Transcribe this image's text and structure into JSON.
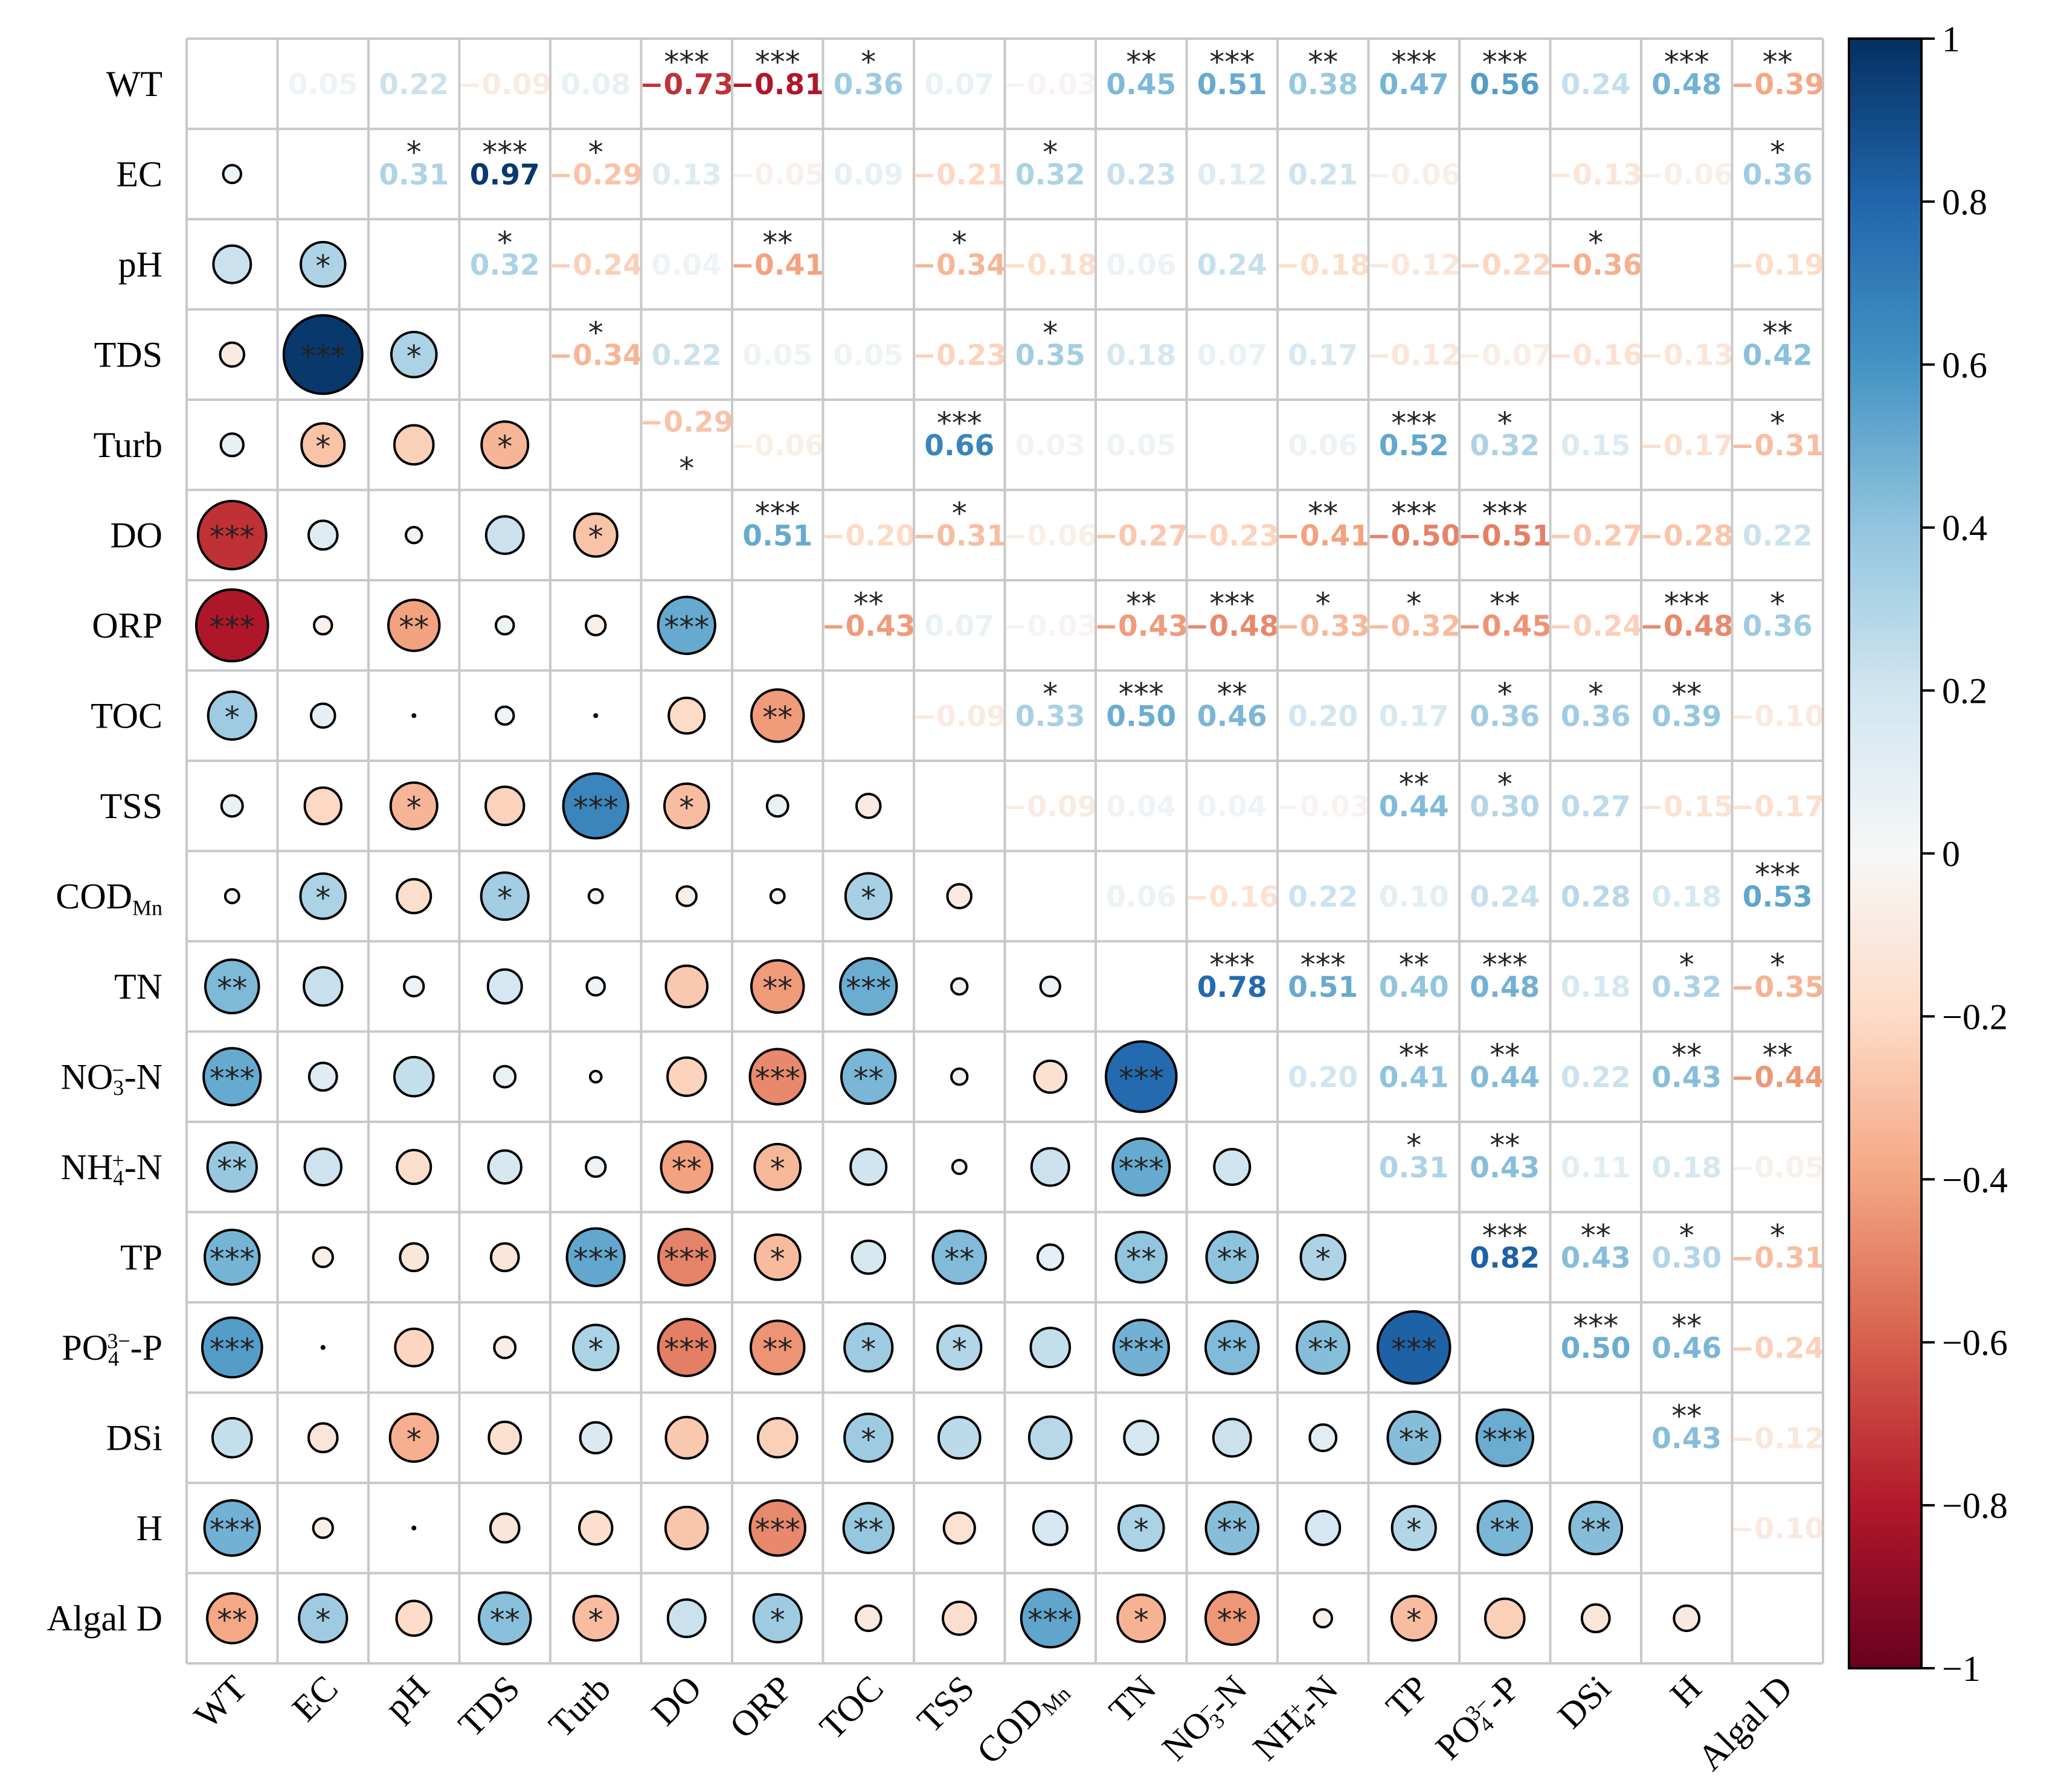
{
  "chart_data": {
    "type": "heatmap",
    "style": "correlation matrix: circles in lower triangle, numbers in upper triangle",
    "variables": [
      {
        "id": "WT",
        "main": "WT",
        "sub": "",
        "sup": "",
        "suffix": ""
      },
      {
        "id": "EC",
        "main": "EC",
        "sub": "",
        "sup": "",
        "suffix": ""
      },
      {
        "id": "pH",
        "main": "pH",
        "sub": "",
        "sup": "",
        "suffix": ""
      },
      {
        "id": "TDS",
        "main": "TDS",
        "sub": "",
        "sup": "",
        "suffix": ""
      },
      {
        "id": "Turb",
        "main": "Turb",
        "sub": "",
        "sup": "",
        "suffix": ""
      },
      {
        "id": "DO",
        "main": "DO",
        "sub": "",
        "sup": "",
        "suffix": ""
      },
      {
        "id": "ORP",
        "main": "ORP",
        "sub": "",
        "sup": "",
        "suffix": ""
      },
      {
        "id": "TOC",
        "main": "TOC",
        "sub": "",
        "sup": "",
        "suffix": ""
      },
      {
        "id": "TSS",
        "main": "TSS",
        "sub": "",
        "sup": "",
        "suffix": ""
      },
      {
        "id": "CODMn",
        "main": "COD",
        "sub": "Mn",
        "sup": "",
        "suffix": ""
      },
      {
        "id": "TN",
        "main": "TN",
        "sub": "",
        "sup": "",
        "suffix": ""
      },
      {
        "id": "NO3-N",
        "main": "NO",
        "sub": "3",
        "sup": "−",
        "suffix": "-N"
      },
      {
        "id": "NH4+-N",
        "main": "NH",
        "sub": "4",
        "sup": "+",
        "suffix": "-N"
      },
      {
        "id": "TP",
        "main": "TP",
        "sub": "",
        "sup": "",
        "suffix": ""
      },
      {
        "id": "PO43--P",
        "main": "PO",
        "sub": "4",
        "sup": "3−",
        "suffix": "-P"
      },
      {
        "id": "DSi",
        "main": "DSi",
        "sub": "",
        "sup": "",
        "suffix": ""
      },
      {
        "id": "H",
        "main": "H",
        "sub": "",
        "sup": "",
        "suffix": ""
      },
      {
        "id": "Algal D",
        "main": "Algal D",
        "sub": "",
        "sup": "",
        "suffix": ""
      }
    ],
    "correlations": [
      [
        null,
        0.05,
        0.22,
        -0.09,
        0.08,
        -0.73,
        -0.81,
        0.36,
        0.07,
        -0.03,
        0.45,
        0.51,
        0.38,
        0.47,
        0.56,
        0.24,
        0.48,
        -0.39
      ],
      [
        0.05,
        null,
        0.31,
        0.97,
        -0.29,
        0.13,
        -0.05,
        0.09,
        -0.21,
        0.32,
        0.23,
        0.12,
        0.21,
        -0.06,
        0.0,
        -0.13,
        -0.06,
        0.36
      ],
      [
        0.22,
        0.31,
        null,
        0.32,
        -0.24,
        0.04,
        -0.41,
        0.01,
        -0.34,
        -0.18,
        0.06,
        0.24,
        -0.18,
        -0.12,
        -0.22,
        -0.36,
        0.01,
        -0.19
      ],
      [
        -0.09,
        0.97,
        0.32,
        null,
        -0.34,
        0.22,
        0.05,
        0.05,
        -0.23,
        0.35,
        0.18,
        0.07,
        0.17,
        -0.12,
        -0.07,
        -0.16,
        -0.13,
        0.42
      ],
      [
        0.08,
        -0.29,
        -0.24,
        -0.34,
        null,
        -0.29,
        -0.06,
        0.01,
        0.66,
        0.03,
        0.05,
        0.02,
        0.06,
        0.52,
        0.32,
        0.15,
        -0.17,
        -0.31
      ],
      [
        -0.73,
        0.13,
        0.04,
        0.22,
        -0.29,
        null,
        0.51,
        -0.2,
        -0.31,
        -0.06,
        -0.27,
        -0.23,
        -0.41,
        -0.5,
        -0.51,
        -0.27,
        -0.28,
        0.22
      ],
      [
        -0.81,
        -0.05,
        -0.41,
        0.05,
        -0.06,
        0.51,
        null,
        -0.43,
        0.07,
        -0.03,
        -0.43,
        -0.48,
        -0.33,
        -0.32,
        -0.45,
        -0.24,
        -0.48,
        0.36
      ],
      [
        0.36,
        0.09,
        0.01,
        0.05,
        0.01,
        -0.2,
        -0.43,
        null,
        -0.09,
        0.33,
        0.5,
        0.46,
        0.2,
        0.17,
        0.36,
        0.36,
        0.39,
        -0.1
      ],
      [
        0.07,
        -0.21,
        -0.34,
        -0.23,
        0.66,
        -0.31,
        0.07,
        -0.09,
        null,
        -0.09,
        0.04,
        0.04,
        -0.03,
        0.44,
        0.3,
        0.27,
        -0.15,
        -0.17
      ],
      [
        -0.03,
        0.32,
        -0.18,
        0.35,
        0.03,
        -0.06,
        -0.03,
        0.33,
        -0.09,
        null,
        0.06,
        -0.16,
        0.22,
        0.1,
        0.24,
        0.28,
        0.18,
        0.53
      ],
      [
        0.45,
        0.23,
        0.06,
        0.18,
        0.05,
        -0.27,
        -0.43,
        0.5,
        0.04,
        0.06,
        null,
        0.78,
        0.51,
        0.4,
        0.48,
        0.18,
        0.32,
        -0.35
      ],
      [
        0.51,
        0.12,
        0.24,
        0.07,
        0.02,
        -0.23,
        -0.48,
        0.46,
        0.04,
        -0.16,
        0.78,
        null,
        0.2,
        0.41,
        0.44,
        0.22,
        0.43,
        -0.44
      ],
      [
        0.38,
        0.21,
        -0.18,
        0.17,
        0.06,
        -0.41,
        -0.33,
        0.2,
        -0.03,
        0.22,
        0.51,
        0.2,
        null,
        0.31,
        0.43,
        0.11,
        0.18,
        -0.05
      ],
      [
        0.47,
        -0.06,
        -0.12,
        -0.12,
        0.52,
        -0.5,
        -0.32,
        0.17,
        0.44,
        0.1,
        0.4,
        0.41,
        0.31,
        null,
        0.82,
        0.43,
        0.3,
        -0.31
      ],
      [
        0.56,
        0.0,
        -0.22,
        -0.07,
        0.32,
        -0.51,
        -0.45,
        0.36,
        0.3,
        0.24,
        0.48,
        0.44,
        0.43,
        0.82,
        null,
        0.5,
        0.46,
        -0.24
      ],
      [
        0.24,
        -0.13,
        -0.36,
        -0.16,
        0.15,
        -0.27,
        -0.24,
        0.36,
        0.27,
        0.28,
        0.18,
        0.22,
        0.11,
        0.43,
        0.5,
        null,
        0.43,
        -0.12
      ],
      [
        0.48,
        -0.06,
        0.01,
        -0.13,
        -0.17,
        -0.28,
        -0.48,
        0.39,
        -0.15,
        0.18,
        0.32,
        0.43,
        0.18,
        0.3,
        0.46,
        0.43,
        null,
        -0.1
      ],
      [
        -0.39,
        0.36,
        -0.19,
        0.42,
        -0.31,
        0.22,
        0.36,
        -0.1,
        -0.17,
        0.53,
        -0.35,
        -0.44,
        -0.05,
        -0.31,
        -0.24,
        -0.12,
        -0.1,
        null
      ]
    ],
    "hidden_value_cells": [
      [
        2,
        7
      ],
      [
        2,
        16
      ],
      [
        4,
        7
      ],
      [
        4,
        11
      ],
      [
        1,
        14
      ]
    ],
    "value_below_stars_cells": [
      [
        4,
        5
      ]
    ],
    "significance": [
      [
        "",
        "",
        "",
        "",
        "",
        "***",
        "***",
        "*",
        "",
        "",
        "**",
        "***",
        "**",
        "***",
        "***",
        "",
        "***",
        "**"
      ],
      [
        "",
        "",
        "*",
        "***",
        "*",
        "",
        "",
        "",
        "",
        "*",
        "",
        "",
        "",
        "",
        "",
        "",
        "",
        "*"
      ],
      [
        "",
        "*",
        "",
        "*",
        "",
        "",
        "**",
        "",
        "*",
        "",
        "",
        "",
        "",
        "",
        "",
        "*",
        "",
        ""
      ],
      [
        "",
        "***",
        "*",
        "",
        "*",
        "",
        "",
        "",
        "",
        "*",
        "",
        "",
        "",
        "",
        "",
        "",
        "",
        "**"
      ],
      [
        "",
        "*",
        "",
        "*",
        "",
        "*",
        "",
        "",
        "***",
        "",
        "",
        "",
        "",
        "***",
        "*",
        "",
        "",
        "*"
      ],
      [
        "***",
        "",
        "",
        "",
        "*",
        "",
        "***",
        "",
        "*",
        "",
        "",
        "",
        "**",
        "***",
        "***",
        "",
        "",
        ""
      ],
      [
        "***",
        "",
        "**",
        "",
        "",
        "***",
        "",
        "**",
        "",
        "",
        "**",
        "***",
        "*",
        "*",
        "**",
        "",
        "***",
        "*"
      ],
      [
        "*",
        "",
        "",
        "",
        "",
        "",
        "**",
        "",
        "",
        "*",
        "***",
        "**",
        "",
        "",
        "*",
        "*",
        "**",
        ""
      ],
      [
        "",
        "",
        "*",
        "",
        "***",
        "*",
        "",
        "",
        "",
        "",
        "",
        "",
        "",
        "**",
        "*",
        "",
        "",
        ""
      ],
      [
        "",
        "*",
        "",
        "*",
        "",
        "",
        "",
        "*",
        "",
        "",
        "",
        "",
        "",
        "",
        "",
        "",
        "",
        "***"
      ],
      [
        "**",
        "",
        "",
        "",
        "",
        "",
        "**",
        "***",
        "",
        "",
        "",
        "***",
        "***",
        "**",
        "***",
        "",
        "*",
        "*"
      ],
      [
        "***",
        "",
        "",
        "",
        "",
        "",
        "***",
        "**",
        "",
        "",
        "***",
        "",
        "",
        "**",
        "**",
        "",
        "**",
        "**"
      ],
      [
        "**",
        "",
        "",
        "",
        "",
        "**",
        "*",
        "",
        "",
        "",
        "***",
        "",
        "",
        "*",
        "**",
        "",
        "",
        ""
      ],
      [
        "***",
        "",
        "",
        "",
        "***",
        "***",
        "*",
        "",
        "**",
        "",
        "**",
        "**",
        "*",
        "",
        "***",
        "**",
        "*",
        "*"
      ],
      [
        "***",
        "",
        "",
        "",
        "*",
        "***",
        "**",
        "*",
        "*",
        "",
        "***",
        "**",
        "**",
        "***",
        "",
        "***",
        "**",
        ""
      ],
      [
        "",
        "",
        "*",
        "",
        "",
        "",
        "",
        "*",
        "",
        "",
        "",
        "",
        "",
        "**",
        "***",
        "",
        "**",
        ""
      ],
      [
        "***",
        "",
        "",
        "",
        "",
        "",
        "***",
        "**",
        "",
        "",
        "*",
        "**",
        "",
        "*",
        "**",
        "**",
        "",
        ""
      ],
      [
        "**",
        "*",
        "",
        "**",
        "*",
        "",
        "*",
        "",
        "",
        "***",
        "*",
        "**",
        "",
        "*",
        "",
        "",
        "",
        ""
      ]
    ],
    "colormap": "RdBu",
    "colormap_stops": [
      "#67001f",
      "#b2182b",
      "#d6604d",
      "#f4a582",
      "#fddbc7",
      "#f7f7f7",
      "#d1e5f0",
      "#92c5de",
      "#4393c3",
      "#2166ac",
      "#053061"
    ],
    "vmin": -1,
    "vmax": 1,
    "colorbar_ticks": [
      "−1",
      "−0.8",
      "−0.6",
      "−0.4",
      "−0.2",
      "0",
      "0.2",
      "0.4",
      "0.6",
      "0.8",
      "1"
    ],
    "colorbar_tick_values": [
      -1,
      -0.8,
      -0.6,
      -0.4,
      -0.2,
      0,
      0.2,
      0.4,
      0.6,
      0.8,
      1
    ],
    "grid": true,
    "legend_position": "right"
  }
}
